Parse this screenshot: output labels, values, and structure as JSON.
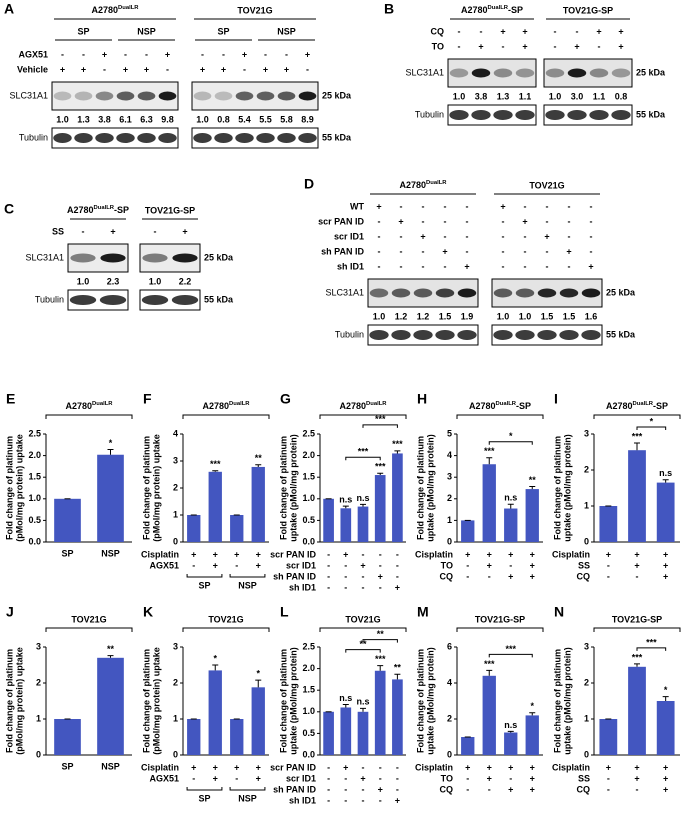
{
  "blots": [
    {
      "label": "A",
      "rows": [
        "AGX51",
        "Vehicle"
      ],
      "bands": [
        "SLC31A1",
        "Tubulin"
      ],
      "kda": [
        "25 kDa",
        "55 kDa"
      ],
      "groups": [
        {
          "title": {
            "text": "A2780",
            "sup": "DualLR"
          },
          "subgroups": [
            "SP",
            "NSP"
          ],
          "signs": [
            [
              "-",
              "-",
              "+",
              "-",
              "-",
              "+"
            ],
            [
              "+",
              "+",
              "-",
              "+",
              "+",
              "-"
            ]
          ],
          "values": [
            1,
            1.3,
            3.8,
            6.1,
            6.3,
            9.8
          ],
          "value_labels": [
            "1.0",
            "1.3",
            "3.8",
            "6.1",
            "6.3",
            "9.8"
          ]
        },
        {
          "title": "TOV21G",
          "subgroups": [
            "SP",
            "NSP"
          ],
          "signs": [
            [
              "-",
              "-",
              "+",
              "-",
              "-",
              "+"
            ],
            [
              "+",
              "+",
              "-",
              "+",
              "+",
              "-"
            ]
          ],
          "values": [
            1,
            0.8,
            5.4,
            5.5,
            5.8,
            8.9
          ],
          "value_labels": [
            "1.0",
            "0.8",
            "5.4",
            "5.5",
            "5.8",
            "8.9"
          ]
        }
      ]
    },
    {
      "label": "B",
      "rows": [
        "CQ",
        "TO"
      ],
      "bands": [
        "SLC31A1",
        "Tubulin"
      ],
      "kda": [
        "25 kDa",
        "55 kDa"
      ],
      "groups": [
        {
          "title": {
            "text": "A2780",
            "sup": "DualLR",
            "suffix": "-SP"
          },
          "signs": [
            [
              "-",
              "-",
              "+",
              "+"
            ],
            [
              "-",
              "+",
              "-",
              "+"
            ]
          ],
          "values": [
            1,
            3.8,
            1.3,
            1.1
          ],
          "value_labels": [
            "1.0",
            "3.8",
            "1.3",
            "1.1"
          ]
        },
        {
          "title": "TOV21G-SP",
          "signs": [
            [
              "-",
              "-",
              "+",
              "+"
            ],
            [
              "-",
              "+",
              "-",
              "+"
            ]
          ],
          "values": [
            1,
            3,
            1.1,
            0.8
          ],
          "value_labels": [
            "1.0",
            "3.0",
            "1.1",
            "0.8"
          ]
        }
      ]
    },
    {
      "label": "C",
      "rows": [
        "SS"
      ],
      "bands": [
        "SLC31A1",
        "Tubulin"
      ],
      "kda": [
        "25 kDa",
        "55 kDa"
      ],
      "groups": [
        {
          "title": {
            "text": "A2780",
            "sup": "DualLR",
            "suffix": "-SP"
          },
          "signs": [
            [
              "-",
              "+"
            ]
          ],
          "values": [
            1,
            2.3
          ],
          "value_labels": [
            "1.0",
            "2.3"
          ]
        },
        {
          "title": "TOV21G-SP",
          "signs": [
            [
              "-",
              "+"
            ]
          ],
          "values": [
            1,
            2.2
          ],
          "value_labels": [
            "1.0",
            "2.2"
          ]
        }
      ]
    },
    {
      "label": "D",
      "rows": [
        "WT",
        "scr PAN ID",
        "scr ID1",
        "sh PAN ID",
        "sh ID1"
      ],
      "bands": [
        "SLC31A1",
        "Tubulin"
      ],
      "kda": [
        "25 kDa",
        "55 kDa"
      ],
      "groups": [
        {
          "title": {
            "text": "A2780",
            "sup": "DualLR"
          },
          "signs": [
            [
              "+",
              "-",
              "-",
              "-",
              "-"
            ],
            [
              "-",
              "+",
              "-",
              "-",
              "-"
            ],
            [
              "-",
              "-",
              "+",
              "-",
              "-"
            ],
            [
              "-",
              "-",
              "-",
              "+",
              "-"
            ],
            [
              "-",
              "-",
              "-",
              "-",
              "+"
            ]
          ],
          "values": [
            1,
            1.2,
            1.2,
            1.5,
            1.9
          ],
          "value_labels": [
            "1.0",
            "1.2",
            "1.2",
            "1.5",
            "1.9"
          ]
        },
        {
          "title": "TOV21G",
          "signs": [
            [
              "+",
              "-",
              "-",
              "-",
              "-"
            ],
            [
              "-",
              "+",
              "-",
              "-",
              "-"
            ],
            [
              "-",
              "-",
              "+",
              "-",
              "-"
            ],
            [
              "-",
              "-",
              "-",
              "+",
              "-"
            ],
            [
              "-",
              "-",
              "-",
              "-",
              "+"
            ]
          ],
          "values": [
            1,
            1,
            1.5,
            1.5,
            1.6
          ],
          "value_labels": [
            "1.0",
            "1.0",
            "1.5",
            "1.5",
            "1.6"
          ]
        }
      ]
    }
  ],
  "chart_data": [
    {
      "type": "bar",
      "label": "E",
      "title": {
        "text": "A2780",
        "sup": "DualLR"
      },
      "ylabel": [
        "Fold change of platinum",
        "(pMol/mg protein) uptake"
      ],
      "categories": [
        "SP",
        "NSP"
      ],
      "values": [
        1,
        2.02
      ],
      "errors": [
        0,
        0.12
      ],
      "significance": [
        null,
        "*"
      ],
      "color": "#4356c0",
      "ylim": [
        0,
        2.5
      ],
      "yticks": [
        {
          "value": 0,
          "label": "0.0"
        },
        0.5,
        {
          "value": 1,
          "label": "1.0"
        },
        1.5,
        {
          "value": 2,
          "label": "2.0"
        },
        2.5
      ]
    },
    {
      "type": "bar",
      "label": "F",
      "title": {
        "text": "A2780",
        "sup": "DualLR"
      },
      "ylabel": [
        "Fold change of platinum",
        "(pMol/mg protein) uptake"
      ],
      "conditions": [
        {
          "name": "Cisplatin",
          "signs": [
            "+",
            "+",
            "+",
            "+"
          ]
        },
        {
          "name": "AGX51",
          "signs": [
            "-",
            "+",
            "-",
            "+"
          ]
        }
      ],
      "groups": [
        "SP",
        "NSP"
      ],
      "values": [
        1,
        2.6,
        1,
        2.78
      ],
      "errors": [
        0,
        0.04,
        0,
        0.08
      ],
      "significance": [
        null,
        "***",
        null,
        "**"
      ],
      "color": "#4356c0",
      "ylim": [
        0,
        4
      ],
      "yticks": [
        0,
        1,
        2,
        3,
        4
      ]
    },
    {
      "type": "bar",
      "label": "G",
      "title": {
        "text": "A2780",
        "sup": "DualLR"
      },
      "ylabel": [
        "Fold change of platinum",
        "uptake (pMol/mg protein)"
      ],
      "conditions": [
        {
          "name": "scr PAN ID",
          "signs": [
            "-",
            "+",
            "-",
            "-",
            "-"
          ]
        },
        {
          "name": "scr ID1",
          "signs": [
            "-",
            "-",
            "+",
            "-",
            "-"
          ]
        },
        {
          "name": "sh PAN ID",
          "signs": [
            "-",
            "-",
            "-",
            "+",
            "-"
          ]
        },
        {
          "name": "sh ID1",
          "signs": [
            "-",
            "-",
            "-",
            "-",
            "+"
          ]
        }
      ],
      "values": [
        1,
        0.78,
        0.82,
        1.55,
        2.05
      ],
      "errors": [
        0,
        0.05,
        0.05,
        0.04,
        0.06
      ],
      "significance": [
        null,
        "n.s",
        "n.s",
        "***",
        "***"
      ],
      "brackets": [
        {
          "from": 1,
          "to": 3,
          "label": "***"
        },
        {
          "from": 2,
          "to": 4,
          "label": "***"
        }
      ],
      "color": "#4356c0",
      "ylim": [
        0,
        2.5
      ],
      "yticks": [
        {
          "value": 0,
          "label": "0.0"
        },
        0.5,
        {
          "value": 1,
          "label": "1.0"
        },
        1.5,
        {
          "value": 2,
          "label": "2.0"
        },
        2.5
      ]
    },
    {
      "type": "bar",
      "label": "H",
      "title": {
        "text": "A2780",
        "sup": "DualLR",
        "suffix": "-SP"
      },
      "ylabel": [
        "Fold change of platinum",
        "uptake (pMol/mg protein)"
      ],
      "conditions": [
        {
          "name": "Cisplatin",
          "signs": [
            "+",
            "+",
            "+",
            "+"
          ]
        },
        {
          "name": "TO",
          "signs": [
            "-",
            "+",
            "-",
            "+"
          ]
        },
        {
          "name": "CQ",
          "signs": [
            "-",
            "-",
            "+",
            "+"
          ]
        }
      ],
      "values": [
        1,
        3.6,
        1.55,
        2.45
      ],
      "errors": [
        0,
        0.3,
        0.2,
        0.12
      ],
      "significance": [
        null,
        "***",
        "n.s",
        "**"
      ],
      "brackets": [
        {
          "from": 1,
          "to": 3,
          "label": "*"
        }
      ],
      "color": "#4356c0",
      "ylim": [
        0,
        5
      ],
      "yticks": [
        0,
        1,
        2,
        3,
        4,
        5
      ]
    },
    {
      "type": "bar",
      "label": "I",
      "title": {
        "text": "A2780",
        "sup": "DualLR",
        "suffix": "-SP"
      },
      "ylabel": [
        "Fold change of platinum",
        "uptake (pMol/mg protein)"
      ],
      "conditions": [
        {
          "name": "Cisplatin",
          "signs": [
            "+",
            "+",
            "+"
          ]
        },
        {
          "name": "SS",
          "signs": [
            "-",
            "+",
            "+"
          ]
        },
        {
          "name": "CQ",
          "signs": [
            "-",
            "-",
            "+"
          ]
        }
      ],
      "values": [
        1,
        2.55,
        1.65
      ],
      "errors": [
        0,
        0.2,
        0.08
      ],
      "significance": [
        null,
        "***",
        "n.s"
      ],
      "brackets": [
        {
          "from": 1,
          "to": 2,
          "label": "*"
        }
      ],
      "color": "#4356c0",
      "ylim": [
        0,
        3
      ],
      "yticks": [
        0,
        1,
        2,
        3
      ]
    },
    {
      "type": "bar",
      "label": "J",
      "title": "TOV21G",
      "ylabel": [
        "Fold change of platinum",
        "(pMol/mg protein) uptake"
      ],
      "categories": [
        "SP",
        "NSP"
      ],
      "values": [
        1,
        2.7
      ],
      "errors": [
        0,
        0.06
      ],
      "significance": [
        null,
        "**"
      ],
      "color": "#4356c0",
      "ylim": [
        0,
        3
      ],
      "yticks": [
        0,
        1,
        2,
        3
      ]
    },
    {
      "type": "bar",
      "label": "K",
      "title": "TOV21G",
      "ylabel": [
        "Fold change of platinum",
        "(pMol/mg protein) uptake"
      ],
      "conditions": [
        {
          "name": "Cisplatin",
          "signs": [
            "+",
            "+",
            "+",
            "+"
          ]
        },
        {
          "name": "AGX51",
          "signs": [
            "-",
            "+",
            "-",
            "+"
          ]
        }
      ],
      "groups": [
        "SP",
        "NSP"
      ],
      "values": [
        1,
        2.35,
        1,
        1.88
      ],
      "errors": [
        0,
        0.15,
        0,
        0.2
      ],
      "significance": [
        null,
        "*",
        null,
        "*"
      ],
      "color": "#4356c0",
      "ylim": [
        0,
        3
      ],
      "yticks": [
        0,
        1,
        2,
        3
      ]
    },
    {
      "type": "bar",
      "label": "L",
      "title": "TOV21G",
      "ylabel": [
        "Fold change of platinum",
        "uptake (pMol/mg protein)"
      ],
      "conditions": [
        {
          "name": "scr PAN ID",
          "signs": [
            "-",
            "+",
            "-",
            "-",
            "-"
          ]
        },
        {
          "name": "scr ID1",
          "signs": [
            "-",
            "-",
            "+",
            "-",
            "-"
          ]
        },
        {
          "name": "sh PAN ID",
          "signs": [
            "-",
            "-",
            "-",
            "+",
            "-"
          ]
        },
        {
          "name": "sh ID1",
          "signs": [
            "-",
            "-",
            "-",
            "-",
            "+"
          ]
        }
      ],
      "values": [
        1,
        1.1,
        1,
        1.95,
        1.75
      ],
      "errors": [
        0,
        0.07,
        0.08,
        0.12,
        0.12
      ],
      "significance": [
        null,
        "n.s",
        "n.s",
        "***",
        "**"
      ],
      "brackets": [
        {
          "from": 1,
          "to": 3,
          "label": "**"
        },
        {
          "from": 2,
          "to": 4,
          "label": "**"
        }
      ],
      "color": "#4356c0",
      "ylim": [
        0,
        2.5
      ],
      "yticks": [
        {
          "value": 0,
          "label": "0.0"
        },
        0.5,
        {
          "value": 1,
          "label": "1.0"
        },
        1.5,
        {
          "value": 2,
          "label": "2.0"
        },
        2.5
      ]
    },
    {
      "type": "bar",
      "label": "M",
      "title": "TOV21G-SP",
      "ylabel": [
        "Fold change of platinum",
        "uptake (pMol/mg protein)"
      ],
      "conditions": [
        {
          "name": "Cisplatin",
          "signs": [
            "+",
            "+",
            "+",
            "+"
          ]
        },
        {
          "name": "TO",
          "signs": [
            "-",
            "+",
            "-",
            "+"
          ]
        },
        {
          "name": "CQ",
          "signs": [
            "-",
            "-",
            "+",
            "+"
          ]
        }
      ],
      "values": [
        1,
        4.4,
        1.25,
        2.2
      ],
      "errors": [
        0,
        0.3,
        0.06,
        0.15
      ],
      "significance": [
        null,
        "***",
        "n.s",
        "*"
      ],
      "brackets": [
        {
          "from": 1,
          "to": 3,
          "label": "***"
        }
      ],
      "color": "#4356c0",
      "ylim": [
        0,
        6
      ],
      "yticks": [
        0,
        2,
        4,
        6
      ]
    },
    {
      "type": "bar",
      "label": "N",
      "title": "TOV21G-SP",
      "ylabel": [
        "Fold change of platinum",
        "uptake (pMol/mg protein)"
      ],
      "conditions": [
        {
          "name": "Cisplatin",
          "signs": [
            "+",
            "+",
            "+"
          ]
        },
        {
          "name": "SS",
          "signs": [
            "-",
            "+",
            "+"
          ]
        },
        {
          "name": "CQ",
          "signs": [
            "-",
            "-",
            "+"
          ]
        }
      ],
      "values": [
        1,
        2.45,
        1.5
      ],
      "errors": [
        0,
        0.08,
        0.12
      ],
      "significance": [
        null,
        "***",
        "*"
      ],
      "brackets": [
        {
          "from": 1,
          "to": 2,
          "label": "***"
        }
      ],
      "color": "#4356c0",
      "ylim": [
        0,
        3
      ],
      "yticks": [
        0,
        1,
        2,
        3
      ]
    }
  ]
}
